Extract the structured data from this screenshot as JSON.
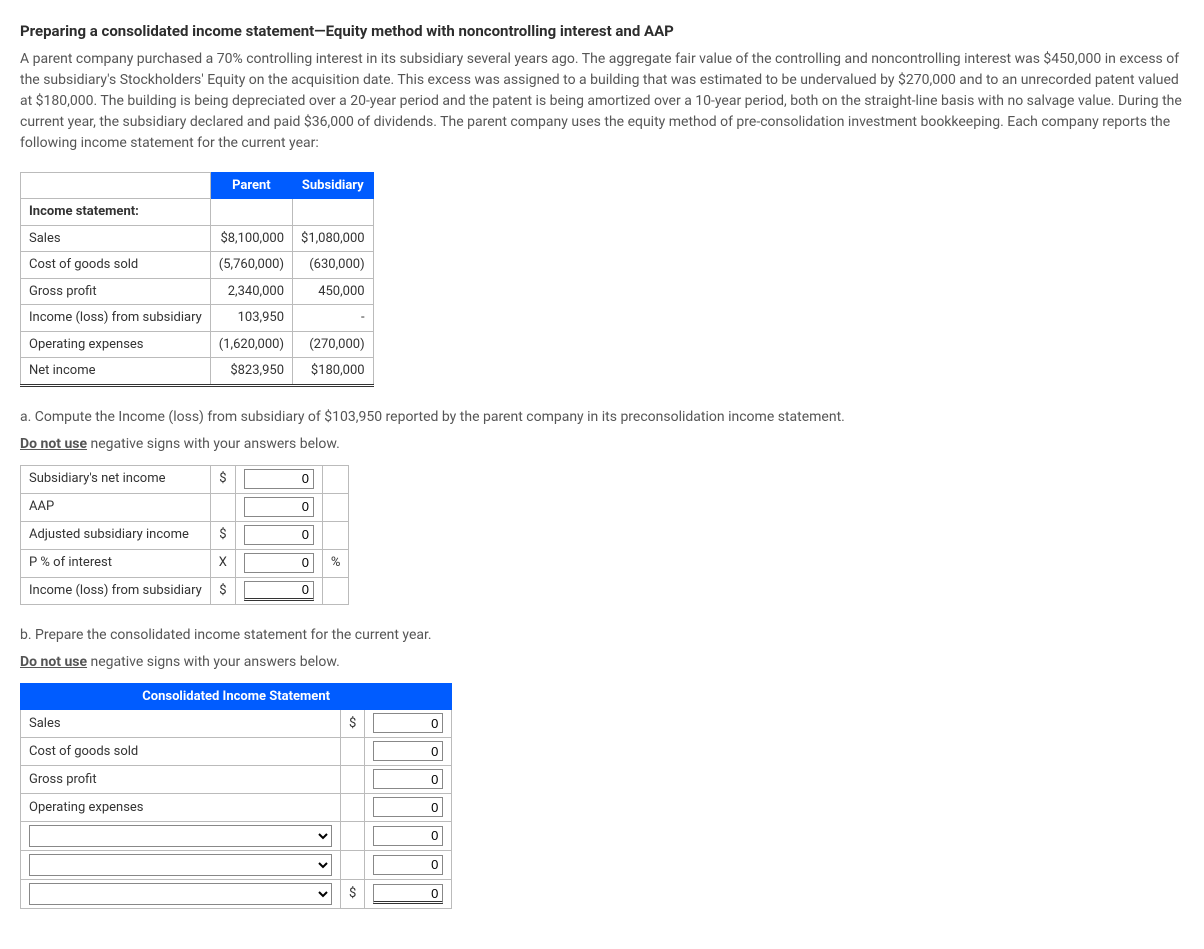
{
  "title": "Preparing a consolidated income statement—Equity method with noncontrolling interest and AAP",
  "intro": "A parent company purchased a 70% controlling interest in its subsidiary several years ago. The aggregate fair value of the controlling and noncontrolling interest was $450,000 in excess of the subsidiary's Stockholders' Equity on the acquisition date. This excess was assigned to a building that was estimated to be undervalued by $270,000 and to an unrecorded patent valued at $180,000. The building is being depreciated over a 20-year period and the patent is being amortized over a 10-year period, both on the straight-line basis with no salvage value. During the current year, the subsidiary declared and paid $36,000 of dividends. The parent company uses the equity method of pre-consolidation investment bookkeeping. Each company reports the following income statement for the current year:",
  "income_table": {
    "headers": {
      "col1": "Parent",
      "col2": "Subsidiary"
    },
    "section": "Income statement:",
    "rows": [
      {
        "label": "Sales",
        "parent": "$8,100,000",
        "sub": "$1,080,000"
      },
      {
        "label": "Cost of goods sold",
        "parent": "(5,760,000)",
        "sub": "(630,000)"
      },
      {
        "label": "Gross profit",
        "parent": "2,340,000",
        "sub": "450,000"
      },
      {
        "label": "Income (loss) from subsidiary",
        "parent": "103,950",
        "sub": "-"
      },
      {
        "label": "Operating expenses",
        "parent": "(1,620,000)",
        "sub": "(270,000)"
      },
      {
        "label": "Net income",
        "parent": "$823,950",
        "sub": "$180,000"
      }
    ]
  },
  "part_a": {
    "question": "a. Compute the Income (loss) from subsidiary of $103,950 reported by the parent company in its preconsolidation income statement.",
    "instruction_prefix": "Do not use",
    "instruction_rest": " negative signs with your answers below.",
    "rows": [
      {
        "label": "Subsidiary's net income",
        "sym": "$",
        "val": "0",
        "suffix": ""
      },
      {
        "label": "AAP",
        "sym": "",
        "val": "0",
        "suffix": ""
      },
      {
        "label": "Adjusted subsidiary income",
        "sym": "$",
        "val": "0",
        "suffix": ""
      },
      {
        "label": "P % of interest",
        "sym": "X",
        "val": "0",
        "suffix": "%"
      },
      {
        "label": "Income (loss) from subsidiary",
        "sym": "$",
        "val": "0",
        "suffix": ""
      }
    ]
  },
  "part_b": {
    "question": "b. Prepare the consolidated income statement for the current year.",
    "instruction_prefix": "Do not use",
    "instruction_rest": " negative signs with your answers below.",
    "header": "Consolidated Income Statement",
    "rows": [
      {
        "label": "Sales",
        "dropdown": false,
        "sym": "$",
        "val": "0"
      },
      {
        "label": "Cost of goods sold",
        "dropdown": false,
        "sym": "",
        "val": "0"
      },
      {
        "label": "Gross profit",
        "dropdown": false,
        "sym": "",
        "val": "0"
      },
      {
        "label": "Operating expenses",
        "dropdown": false,
        "sym": "",
        "val": "0"
      },
      {
        "label": "",
        "dropdown": true,
        "sym": "",
        "val": "0"
      },
      {
        "label": "",
        "dropdown": true,
        "sym": "",
        "val": "0"
      },
      {
        "label": "",
        "dropdown": true,
        "sym": "$",
        "val": "0"
      }
    ]
  },
  "colors": {
    "header_bg": "#005cff",
    "header_fg": "#ffffff",
    "border": "#bbbbbb",
    "text": "#333333",
    "muted": "#555555"
  }
}
